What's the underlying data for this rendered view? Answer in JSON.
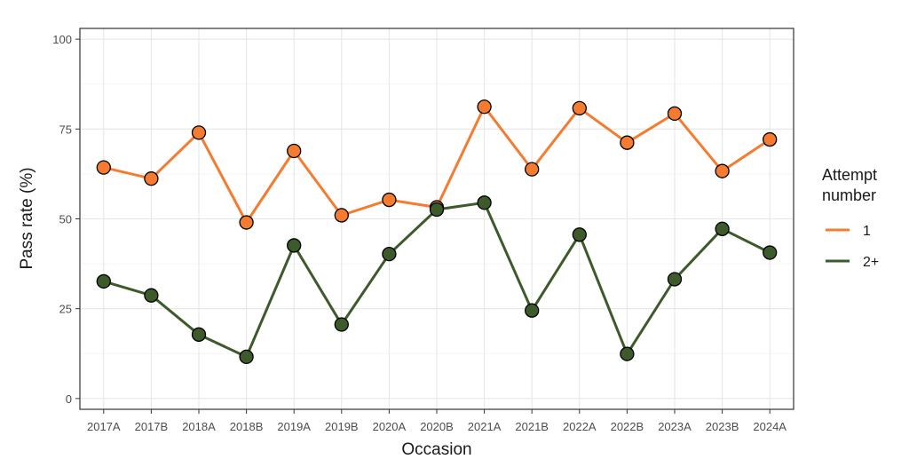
{
  "chart_data": {
    "type": "line",
    "xlabel": "Occasion",
    "ylabel": "Pass rate (%)",
    "ylim": [
      -3,
      103
    ],
    "yticks": [
      0,
      25,
      50,
      75,
      100
    ],
    "grid": true,
    "legend_title": "Attempt\nnumber",
    "legend_title_lines": [
      "Attempt",
      "number"
    ],
    "legend_position": "right",
    "categories": [
      "2017A",
      "2017B",
      "2018A",
      "2018B",
      "2019A",
      "2019B",
      "2020A",
      "2020B",
      "2021A",
      "2021B",
      "2022A",
      "2022B",
      "2023A",
      "2023B",
      "2024A"
    ],
    "series": [
      {
        "name": "1",
        "color": "#f47b30",
        "values": [
          64.3,
          61.2,
          74.0,
          49.0,
          68.9,
          51.0,
          55.3,
          53.2,
          81.2,
          63.8,
          80.8,
          71.2,
          79.3,
          63.3,
          72.1
        ]
      },
      {
        "name": "2+",
        "color": "#3d5a2a",
        "values": [
          32.6,
          28.7,
          17.8,
          11.6,
          42.6,
          20.6,
          40.2,
          52.6,
          54.5,
          24.5,
          45.6,
          12.4,
          33.2,
          47.2,
          40.6
        ]
      }
    ]
  }
}
